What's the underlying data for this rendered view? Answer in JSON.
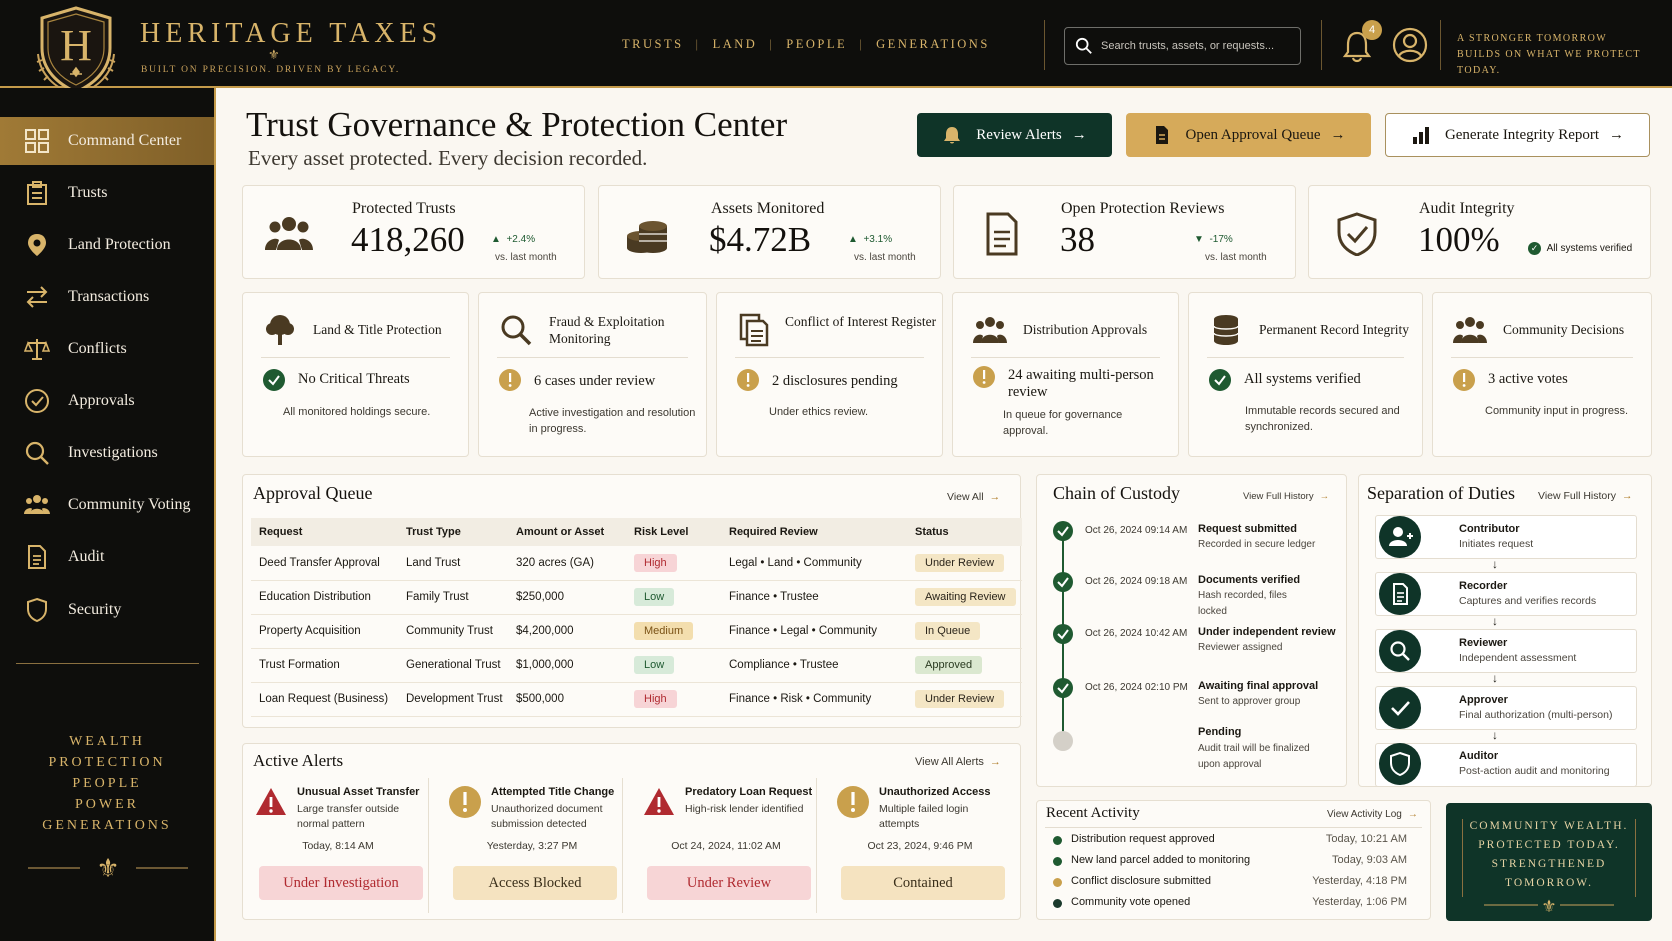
{
  "brand": {
    "monogram": "H",
    "name": "HERITAGE TAXES",
    "tagline": "BUILT ON PRECISION. DRIVEN BY LEGACY."
  },
  "topnav": [
    "TRUSTS",
    "LAND",
    "PEOPLE",
    "GENERATIONS"
  ],
  "search": {
    "placeholder": "Search trusts, assets, or requests..."
  },
  "notifications": {
    "count": "4"
  },
  "top_quote": [
    "A STRONGER TOMORROW",
    "BUILDS ON WHAT WE PROTECT TODAY."
  ],
  "sidebar": {
    "items": [
      {
        "label": "Command Center",
        "icon": "grid-icon"
      },
      {
        "label": "Trusts",
        "icon": "clipboard-icon"
      },
      {
        "label": "Land Protection",
        "icon": "map-pin-icon"
      },
      {
        "label": "Transactions",
        "icon": "swap-arrows-icon"
      },
      {
        "label": "Conflicts",
        "icon": "scales-icon"
      },
      {
        "label": "Approvals",
        "icon": "check-circle-icon"
      },
      {
        "label": "Investigations",
        "icon": "magnifier-icon"
      },
      {
        "label": "Community Voting",
        "icon": "people-icon"
      },
      {
        "label": "Audit",
        "icon": "document-icon"
      },
      {
        "label": "Security",
        "icon": "shield-icon"
      }
    ],
    "motto": [
      "WEALTH",
      "PROTECTION",
      "PEOPLE",
      "POWER",
      "GENERATIONS"
    ]
  },
  "header": {
    "title": "Trust Governance & Protection Center",
    "subtitle": "Every asset protected. Every decision recorded.",
    "buttons": {
      "review_alerts": "Review Alerts",
      "approval_queue": "Open Approval Queue",
      "integrity_report": "Generate Integrity Report"
    }
  },
  "kpis": [
    {
      "label": "Protected Trusts",
      "value": "418,260",
      "delta": "+2.4%",
      "vs": "vs. last month",
      "direction": "up"
    },
    {
      "label": "Assets Monitored",
      "value": "$4.72B",
      "delta": "+3.1%",
      "vs": "vs. last month",
      "direction": "up"
    },
    {
      "label": "Open Protection Reviews",
      "value": "38",
      "delta": "-17%",
      "vs": "vs. last month",
      "direction": "down"
    },
    {
      "label": "Audit Integrity",
      "value": "100%",
      "note": "All systems verified"
    }
  ],
  "tiles": [
    {
      "title": "Land & Title Protection",
      "status": "No Critical Threats",
      "desc": "All monitored holdings secure.",
      "state": "ok"
    },
    {
      "title": "Fraud & Exploitation Monitoring",
      "status": "6 cases under review",
      "desc": "Active investigation and resolution in progress.",
      "state": "warn"
    },
    {
      "title": "Conflict of Interest Register",
      "status": "2 disclosures pending",
      "desc": "Under ethics review.",
      "state": "warn"
    },
    {
      "title": "Distribution Approvals",
      "status": "24 awaiting multi-person review",
      "desc": "In queue for governance approval.",
      "state": "warn"
    },
    {
      "title": "Permanent Record Integrity",
      "status": "All systems verified",
      "desc": "Immutable records secured and synchronized.",
      "state": "ok"
    },
    {
      "title": "Community Decisions",
      "status": "3 active votes",
      "desc": "Community input in progress.",
      "state": "warn"
    }
  ],
  "approval_queue": {
    "title": "Approval Queue",
    "link": "View All",
    "columns": [
      "Request",
      "Trust Type",
      "Amount or Asset",
      "Risk Level",
      "Required Review",
      "Status"
    ],
    "rows": [
      {
        "request": "Deed Transfer Approval",
        "type": "Land Trust",
        "amount": "320 acres (GA)",
        "risk": "High",
        "review": "Legal • Land • Community",
        "status": "Under Review"
      },
      {
        "request": "Education Distribution",
        "type": "Family Trust",
        "amount": "$250,000",
        "risk": "Low",
        "review": "Finance • Trustee",
        "status": "Awaiting Review"
      },
      {
        "request": "Property Acquisition",
        "type": "Community Trust",
        "amount": "$4,200,000",
        "risk": "Medium",
        "review": "Finance • Legal • Community",
        "status": "In Queue"
      },
      {
        "request": "Trust Formation",
        "type": "Generational Trust",
        "amount": "$1,000,000",
        "risk": "Low",
        "review": "Compliance • Trustee",
        "status": "Approved"
      },
      {
        "request": "Loan Request (Business)",
        "type": "Development Trust",
        "amount": "$500,000",
        "risk": "High",
        "review": "Finance • Risk • Community",
        "status": "Under Review"
      }
    ]
  },
  "active_alerts": {
    "title": "Active Alerts",
    "link": "View All Alerts",
    "items": [
      {
        "title": "Unusual Asset Transfer",
        "desc": "Large transfer outside normal pattern",
        "time": "Today, 8:14 AM",
        "action": "Under Investigation",
        "severity": "red"
      },
      {
        "title": "Attempted Title Change",
        "desc": "Unauthorized document submission detected",
        "time": "Yesterday, 3:27 PM",
        "action": "Access Blocked",
        "severity": "gold"
      },
      {
        "title": "Predatory Loan Request",
        "desc": "High-risk lender identified",
        "time": "Oct 24, 2024, 11:02 AM",
        "action": "Under Review",
        "severity": "red"
      },
      {
        "title": "Unauthorized Access",
        "desc": "Multiple failed login attempts",
        "time": "Oct 23, 2024, 9:46 PM",
        "action": "Contained",
        "severity": "gold"
      }
    ]
  },
  "custody": {
    "title": "Chain of Custody",
    "link": "View Full History",
    "events": [
      {
        "time": "Oct 26, 2024   09:14 AM",
        "title": "Request submitted",
        "desc": "Recorded in secure ledger",
        "done": true
      },
      {
        "time": "Oct 26, 2024   09:18 AM",
        "title": "Documents verified",
        "desc": "Hash recorded, files locked",
        "done": true
      },
      {
        "time": "Oct 26, 2024   10:42 AM",
        "title": "Under independent review",
        "desc": "Reviewer assigned",
        "done": true
      },
      {
        "time": "Oct 26, 2024   02:10 PM",
        "title": "Awaiting final approval",
        "desc": "Sent to approver group",
        "done": true
      },
      {
        "time": "",
        "title": "Pending",
        "desc": "Audit trail will be finalized upon approval",
        "done": false
      }
    ]
  },
  "duties": {
    "title": "Separation of Duties",
    "link": "View Full History",
    "roles": [
      {
        "title": "Contributor",
        "desc": "Initiates request",
        "icon": "user-plus-icon"
      },
      {
        "title": "Recorder",
        "desc": "Captures and verifies records",
        "icon": "document-icon"
      },
      {
        "title": "Reviewer",
        "desc": "Independent assessment",
        "icon": "magnifier-icon"
      },
      {
        "title": "Approver",
        "desc": "Final authorization (multi-person)",
        "icon": "check-icon"
      },
      {
        "title": "Auditor",
        "desc": "Post-action audit and monitoring",
        "icon": "shield-icon"
      }
    ]
  },
  "activity": {
    "title": "Recent Activity",
    "link": "View Activity Log",
    "items": [
      {
        "text": "Distribution request approved",
        "time": "Today, 10:21 AM",
        "color": "#1f5a31"
      },
      {
        "text": "New land parcel added to monitoring",
        "time": "Today, 9:03 AM",
        "color": "#1f5a31"
      },
      {
        "text": "Conflict disclosure submitted",
        "time": "Yesterday, 4:18 PM",
        "color": "#c9a04c"
      },
      {
        "text": "Community vote opened",
        "time": "Yesterday, 1:06 PM",
        "color": "#1b3a2c"
      }
    ]
  },
  "community_box": [
    "COMMUNITY WEALTH.",
    "PROTECTED TODAY.",
    "STRENGTHENED",
    "TOMORROW."
  ],
  "colors": {
    "gold": "#c9a04c",
    "dark": "#0e0e0c",
    "forest": "#0f3428",
    "green": "#1f5a31",
    "red": "#b02a30"
  }
}
